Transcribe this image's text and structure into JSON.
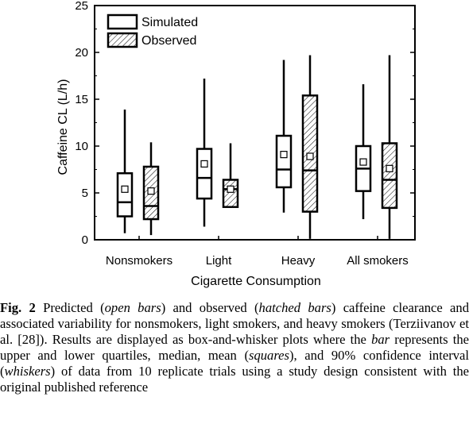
{
  "chart_data": {
    "type": "box",
    "title": "",
    "xlabel": "Cigarette Consumption",
    "ylabel": "Caffeine CL (L/h)",
    "ylim": [
      0,
      25
    ],
    "yticks": [
      0,
      5,
      10,
      15,
      20,
      25
    ],
    "grid": false,
    "legend_position": "top-left",
    "categories": [
      "Nonsmokers",
      "Light",
      "Heavy",
      "All smokers"
    ],
    "series": [
      {
        "name": "Simulated",
        "fill": "open",
        "boxes": [
          {
            "whisker_low": 0.7,
            "q1": 2.5,
            "median": 4.0,
            "q3": 7.1,
            "whisker_high": 13.9,
            "mean": 5.4
          },
          {
            "whisker_low": 1.4,
            "q1": 4.4,
            "median": 6.6,
            "q3": 9.7,
            "whisker_high": 17.2,
            "mean": 8.1
          },
          {
            "whisker_low": 2.9,
            "q1": 5.6,
            "median": 7.5,
            "q3": 11.1,
            "whisker_high": 19.2,
            "mean": 9.1
          },
          {
            "whisker_low": 2.2,
            "q1": 5.2,
            "median": 7.6,
            "q3": 10.0,
            "whisker_high": 16.6,
            "mean": 8.3
          }
        ]
      },
      {
        "name": "Observed",
        "fill": "hatched",
        "boxes": [
          {
            "whisker_low": 0.5,
            "q1": 2.2,
            "median": 3.6,
            "q3": 7.8,
            "whisker_high": 10.4,
            "mean": 5.2
          },
          {
            "whisker_low": 3.4,
            "q1": 3.5,
            "median": 5.4,
            "q3": 6.4,
            "whisker_high": 10.3,
            "mean": 5.4
          },
          {
            "whisker_low": 0.1,
            "q1": 3.0,
            "median": 7.4,
            "q3": 15.4,
            "whisker_high": 19.7,
            "mean": 8.9
          },
          {
            "whisker_low": 0.1,
            "q1": 3.4,
            "median": 6.4,
            "q3": 10.3,
            "whisker_high": 19.7,
            "mean": 7.6
          }
        ]
      }
    ]
  },
  "caption": {
    "fig_label": "Fig. 2",
    "html": "Predicted (<i>open bars</i>) and observed (<i>hatched bars</i>) caffeine clearance and associated variability for nonsmokers, light smokers, and heavy smokers (Terziivanov et al. [28]). Results are displayed as box-and-whisker plots where the <i>bar</i> represents the upper and lower quartiles, median, mean (<i>squares</i>), and 90% confidence interval (<i>whiskers</i>) of data from 10 replicate trials using a study design consistent with the original published reference"
  }
}
